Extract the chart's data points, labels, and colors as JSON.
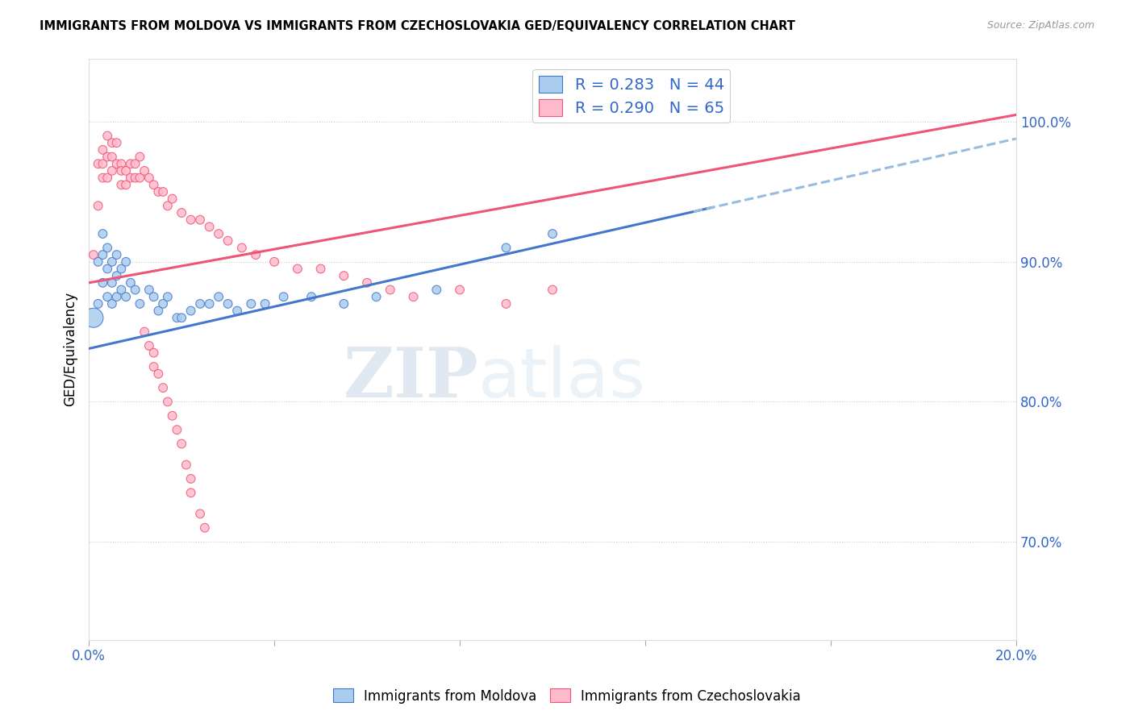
{
  "title": "IMMIGRANTS FROM MOLDOVA VS IMMIGRANTS FROM CZECHOSLOVAKIA GED/EQUIVALENCY CORRELATION CHART",
  "source": "Source: ZipAtlas.com",
  "ylabel": "GED/Equivalency",
  "yticks": [
    "100.0%",
    "90.0%",
    "80.0%",
    "70.0%"
  ],
  "ytick_vals": [
    1.0,
    0.9,
    0.8,
    0.7
  ],
  "legend_entry_moldova": "R = 0.283   N = 44",
  "legend_entry_czech": "R = 0.290   N = 65",
  "legend_label_moldova": "Immigrants from Moldova",
  "legend_label_czech": "Immigrants from Czechoslovakia",
  "moldova_color": "#aaccee",
  "czech_color": "#ffbbcc",
  "trendline_moldova_color": "#4477cc",
  "trendline_czech_color": "#ee5577",
  "trendline_moldova_dashed_color": "#99bbdd",
  "watermark_zip": "ZIP",
  "watermark_atlas": "atlas",
  "xlim": [
    0.0,
    0.2
  ],
  "ylim": [
    0.63,
    1.045
  ],
  "moldova_x": [
    0.001,
    0.002,
    0.002,
    0.003,
    0.003,
    0.003,
    0.004,
    0.004,
    0.004,
    0.005,
    0.005,
    0.005,
    0.006,
    0.006,
    0.006,
    0.007,
    0.007,
    0.008,
    0.008,
    0.009,
    0.01,
    0.011,
    0.013,
    0.014,
    0.015,
    0.016,
    0.017,
    0.019,
    0.02,
    0.022,
    0.024,
    0.026,
    0.028,
    0.03,
    0.032,
    0.035,
    0.038,
    0.042,
    0.048,
    0.055,
    0.062,
    0.075,
    0.09,
    0.1
  ],
  "moldova_y": [
    0.86,
    0.9,
    0.87,
    0.92,
    0.905,
    0.885,
    0.91,
    0.895,
    0.875,
    0.9,
    0.885,
    0.87,
    0.905,
    0.89,
    0.875,
    0.895,
    0.88,
    0.9,
    0.875,
    0.885,
    0.88,
    0.87,
    0.88,
    0.875,
    0.865,
    0.87,
    0.875,
    0.86,
    0.86,
    0.865,
    0.87,
    0.87,
    0.875,
    0.87,
    0.865,
    0.87,
    0.87,
    0.875,
    0.875,
    0.87,
    0.875,
    0.88,
    0.91,
    0.92
  ],
  "moldova_size": [
    300,
    60,
    60,
    60,
    60,
    60,
    60,
    60,
    60,
    60,
    60,
    60,
    60,
    60,
    60,
    60,
    60,
    60,
    60,
    60,
    60,
    60,
    60,
    60,
    60,
    60,
    60,
    60,
    60,
    60,
    60,
    60,
    60,
    60,
    60,
    60,
    60,
    60,
    60,
    60,
    60,
    60,
    60,
    60
  ],
  "czech_x": [
    0.001,
    0.002,
    0.002,
    0.003,
    0.003,
    0.003,
    0.004,
    0.004,
    0.004,
    0.005,
    0.005,
    0.005,
    0.006,
    0.006,
    0.007,
    0.007,
    0.007,
    0.008,
    0.008,
    0.009,
    0.009,
    0.01,
    0.01,
    0.011,
    0.011,
    0.012,
    0.013,
    0.014,
    0.015,
    0.016,
    0.017,
    0.018,
    0.02,
    0.022,
    0.024,
    0.026,
    0.028,
    0.03,
    0.033,
    0.036,
    0.04,
    0.045,
    0.05,
    0.055,
    0.06,
    0.065,
    0.07,
    0.08,
    0.09,
    0.1,
    0.012,
    0.013,
    0.014,
    0.014,
    0.015,
    0.016,
    0.017,
    0.018,
    0.019,
    0.02,
    0.021,
    0.022,
    0.022,
    0.024,
    0.025
  ],
  "czech_y": [
    0.905,
    0.94,
    0.97,
    0.97,
    0.96,
    0.98,
    0.96,
    0.975,
    0.99,
    0.965,
    0.985,
    0.975,
    0.97,
    0.985,
    0.955,
    0.97,
    0.965,
    0.955,
    0.965,
    0.96,
    0.97,
    0.96,
    0.97,
    0.96,
    0.975,
    0.965,
    0.96,
    0.955,
    0.95,
    0.95,
    0.94,
    0.945,
    0.935,
    0.93,
    0.93,
    0.925,
    0.92,
    0.915,
    0.91,
    0.905,
    0.9,
    0.895,
    0.895,
    0.89,
    0.885,
    0.88,
    0.875,
    0.88,
    0.87,
    0.88,
    0.85,
    0.84,
    0.835,
    0.825,
    0.82,
    0.81,
    0.8,
    0.79,
    0.78,
    0.77,
    0.755,
    0.745,
    0.735,
    0.72,
    0.71
  ],
  "czech_size": [
    60,
    60,
    60,
    60,
    60,
    60,
    60,
    60,
    60,
    60,
    60,
    60,
    60,
    60,
    60,
    60,
    60,
    60,
    60,
    60,
    60,
    60,
    60,
    60,
    60,
    60,
    60,
    60,
    60,
    60,
    60,
    60,
    60,
    60,
    60,
    60,
    60,
    60,
    60,
    60,
    60,
    60,
    60,
    60,
    60,
    60,
    60,
    60,
    60,
    60,
    60,
    60,
    60,
    60,
    60,
    60,
    60,
    60,
    60,
    60,
    60,
    60,
    60,
    60,
    60
  ]
}
